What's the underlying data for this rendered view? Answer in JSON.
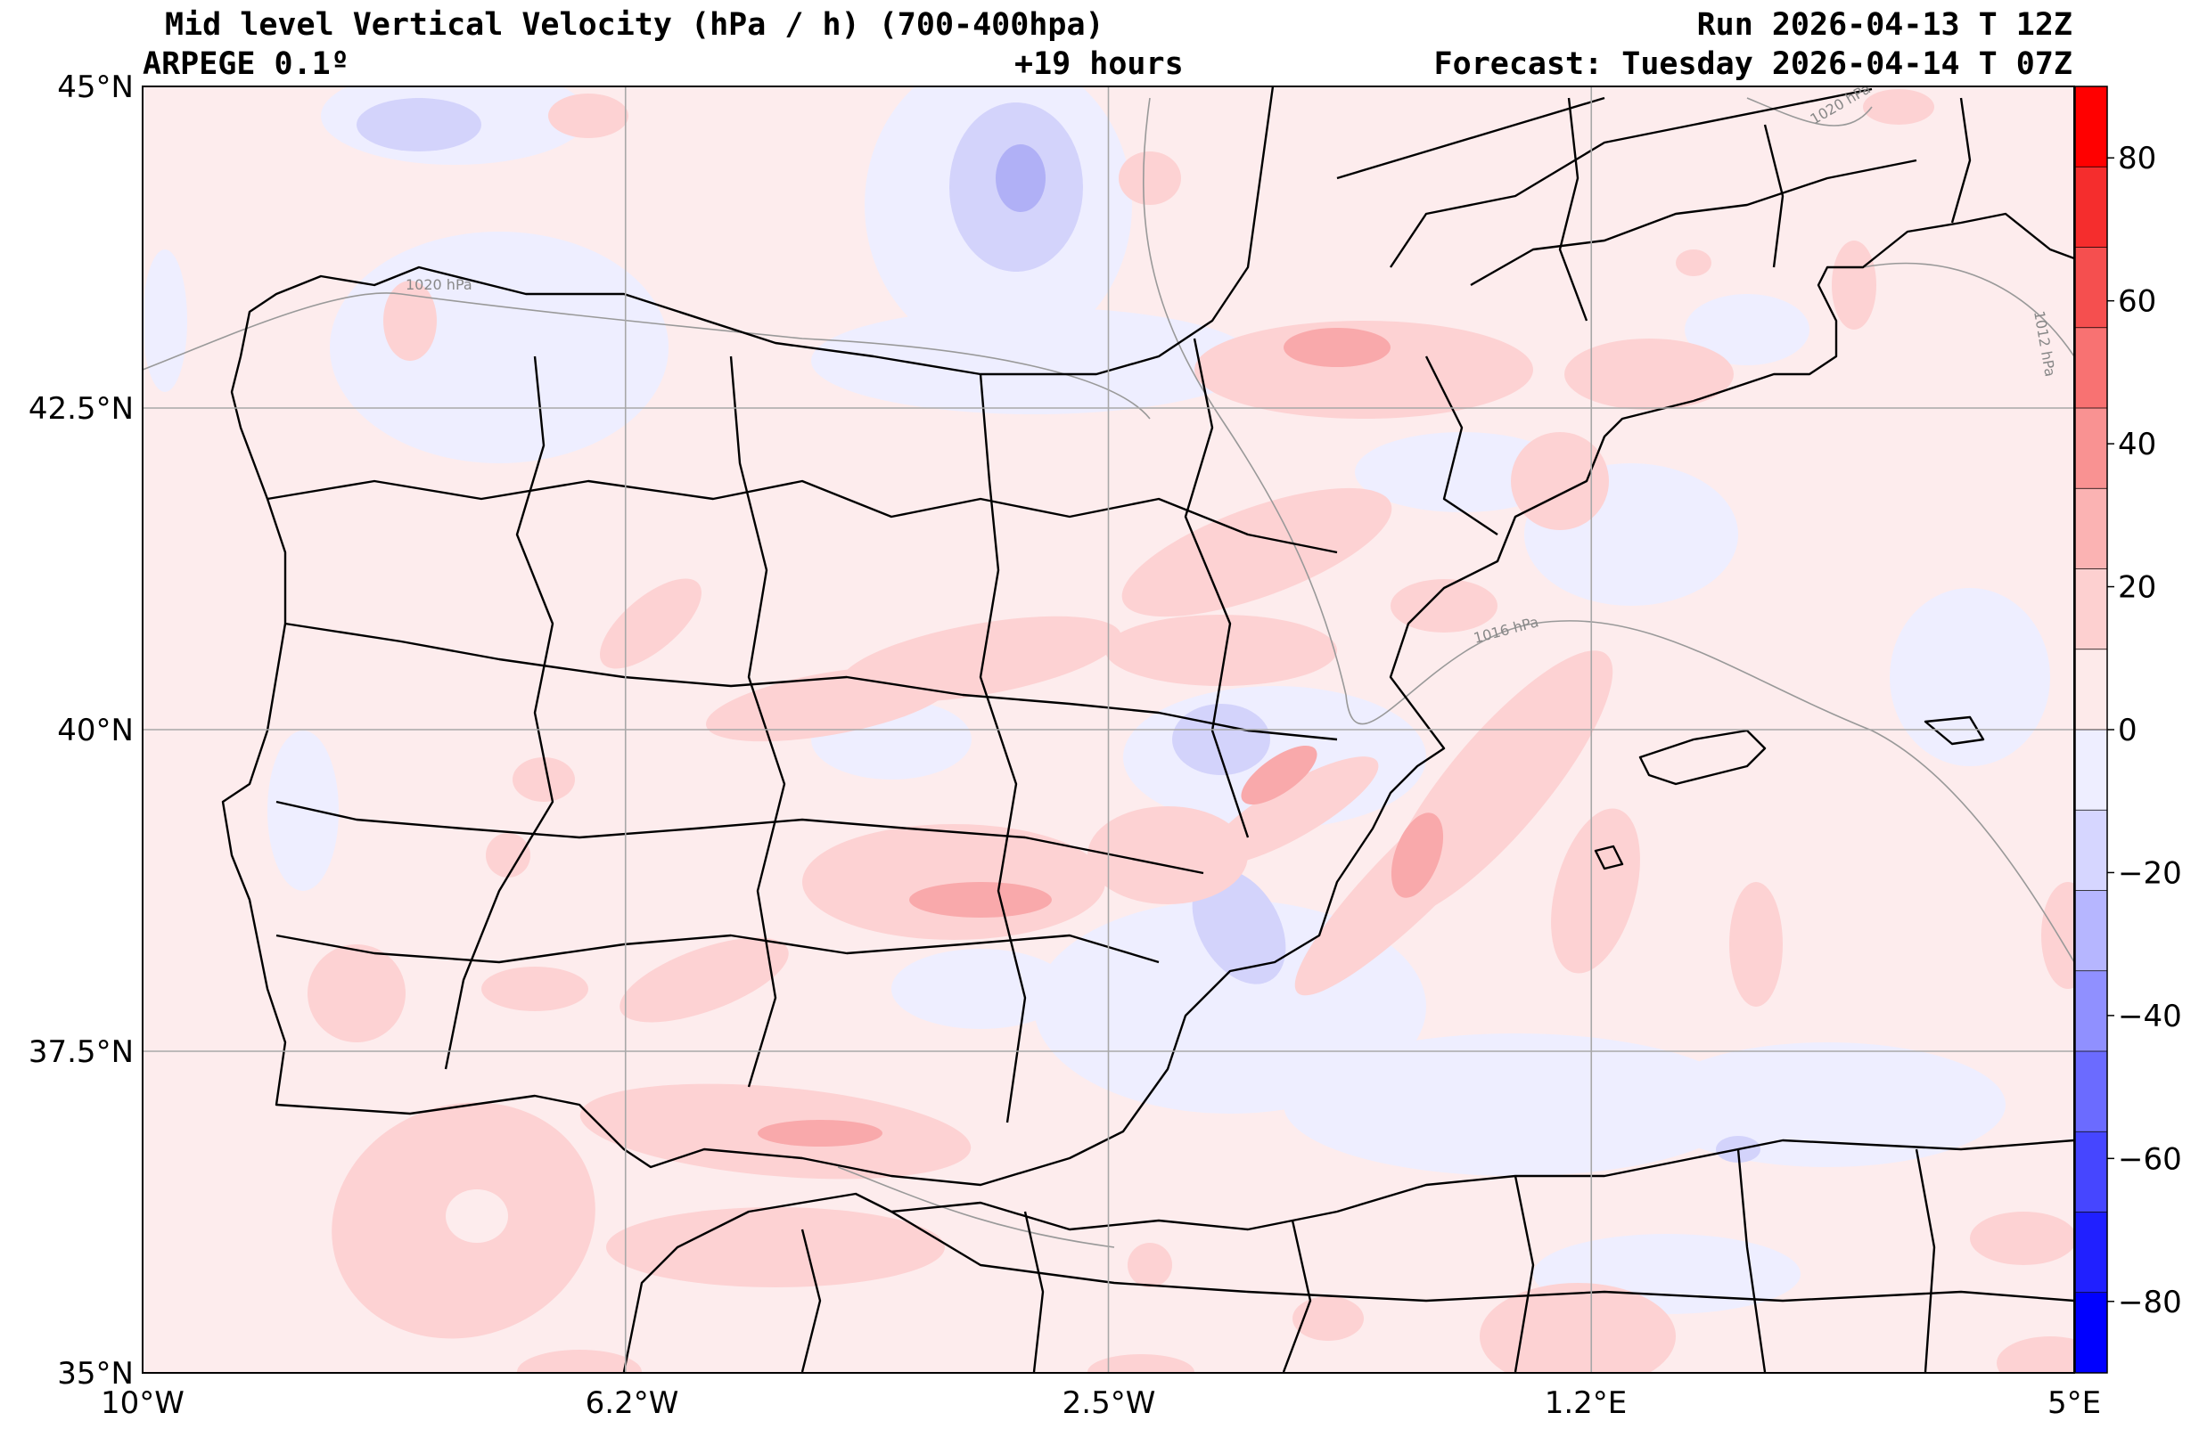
{
  "header": {
    "title": "Mid level Vertical Velocity (hPa / h)  (700-400hpa)",
    "model": "ARPEGE 0.1º",
    "lead": "+19 hours",
    "run": "Run 2026-04-13 T 12Z",
    "forecast": "Forecast: Tuesday 2026-04-14 T 07Z"
  },
  "map": {
    "lon_range": [
      -10,
      5
    ],
    "lat_range": [
      35,
      45
    ],
    "lat_labels": [
      "45°N",
      "42.5°N",
      "40°N",
      "37.5°N",
      "35°N"
    ],
    "lon_labels": [
      "10°W",
      "6.2°W",
      "2.5°W",
      "1.2°E",
      "5°E"
    ],
    "isobar_labels": [
      "1020 hPa",
      "1020 hPa",
      "1016 hPa",
      "1012 hPa"
    ]
  },
  "colorbar": {
    "range": [
      -90,
      90
    ],
    "ticks": [
      "80",
      "60",
      "40",
      "20",
      "0",
      "−20",
      "−40",
      "−60",
      "−80"
    ],
    "colors": [
      "#0000ff",
      "#2020ff",
      "#4646ff",
      "#6b6bff",
      "#9090ff",
      "#b6b6ff",
      "#d6d6ff",
      "#eeeeff",
      "#fdeaea",
      "#fdd0d0",
      "#fbb3b3",
      "#f99292",
      "#f87272",
      "#f54f4f",
      "#f52d2d",
      "#ff0000"
    ]
  },
  "colors": {
    "background": "#fdeced",
    "weak_up": "#fdd2d3",
    "mid_up": "#f9a9ab",
    "weak_down": "#eeeeff",
    "mid_down": "#d3d3fb",
    "strong_down": "#b0b0f6",
    "border": "#000000",
    "grid": "#a0a0a0"
  }
}
